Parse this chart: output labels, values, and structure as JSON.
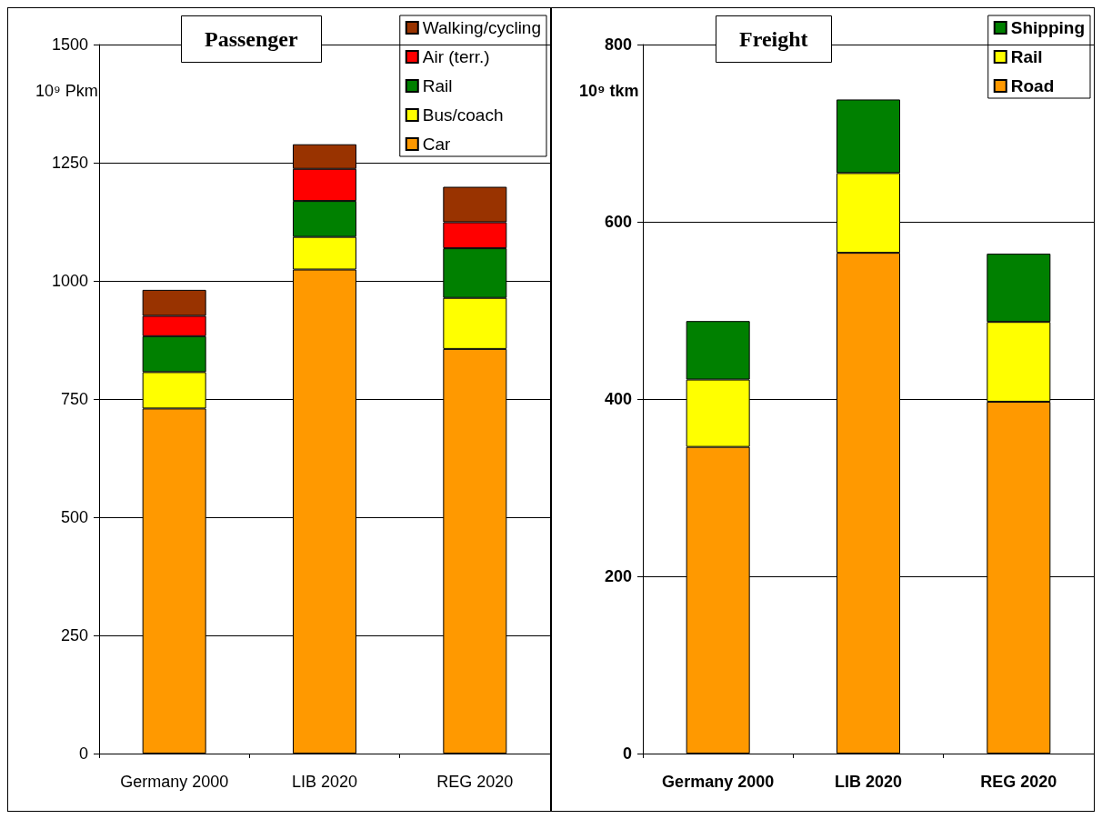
{
  "chart_data": [
    {
      "type": "bar",
      "title": "Passenger",
      "ylabel": "10⁹ Pkm",
      "categories": [
        "Germany 2000",
        "LIB 2020",
        "REG 2020"
      ],
      "stacked": true,
      "series": [
        {
          "name": "Car",
          "color": "#ff9900",
          "values": [
            730,
            1024,
            856
          ]
        },
        {
          "name": "Bus/coach",
          "color": "#ffff00",
          "values": [
            77,
            69,
            108
          ]
        },
        {
          "name": "Rail",
          "color": "#008000",
          "values": [
            76,
            76,
            105
          ]
        },
        {
          "name": "Air (terr.)",
          "color": "#ff0000",
          "values": [
            43,
            68,
            55
          ]
        },
        {
          "name": "Walking/cycling",
          "color": "#993300",
          "values": [
            55,
            52,
            75
          ]
        }
      ],
      "ylim": [
        0,
        1500
      ],
      "yticks": [
        0,
        250,
        500,
        750,
        1000,
        1250,
        1500
      ],
      "grid": "y",
      "legend": "top right"
    },
    {
      "type": "bar",
      "title": "Freight",
      "ylabel": "10⁹ tkm",
      "categories": [
        "Germany 2000",
        "LIB 2020",
        "REG 2020"
      ],
      "stacked": true,
      "series": [
        {
          "name": "Road",
          "color": "#ff9900",
          "values": [
            346,
            565,
            397
          ]
        },
        {
          "name": "Rail",
          "color": "#ffff00",
          "values": [
            76,
            90,
            90
          ]
        },
        {
          "name": "Shipping",
          "color": "#008000",
          "values": [
            66,
            83,
            77
          ]
        }
      ],
      "ylim": [
        0,
        800
      ],
      "yticks": [
        0,
        200,
        400,
        600,
        800
      ],
      "grid": "y",
      "legend": "top right"
    }
  ]
}
